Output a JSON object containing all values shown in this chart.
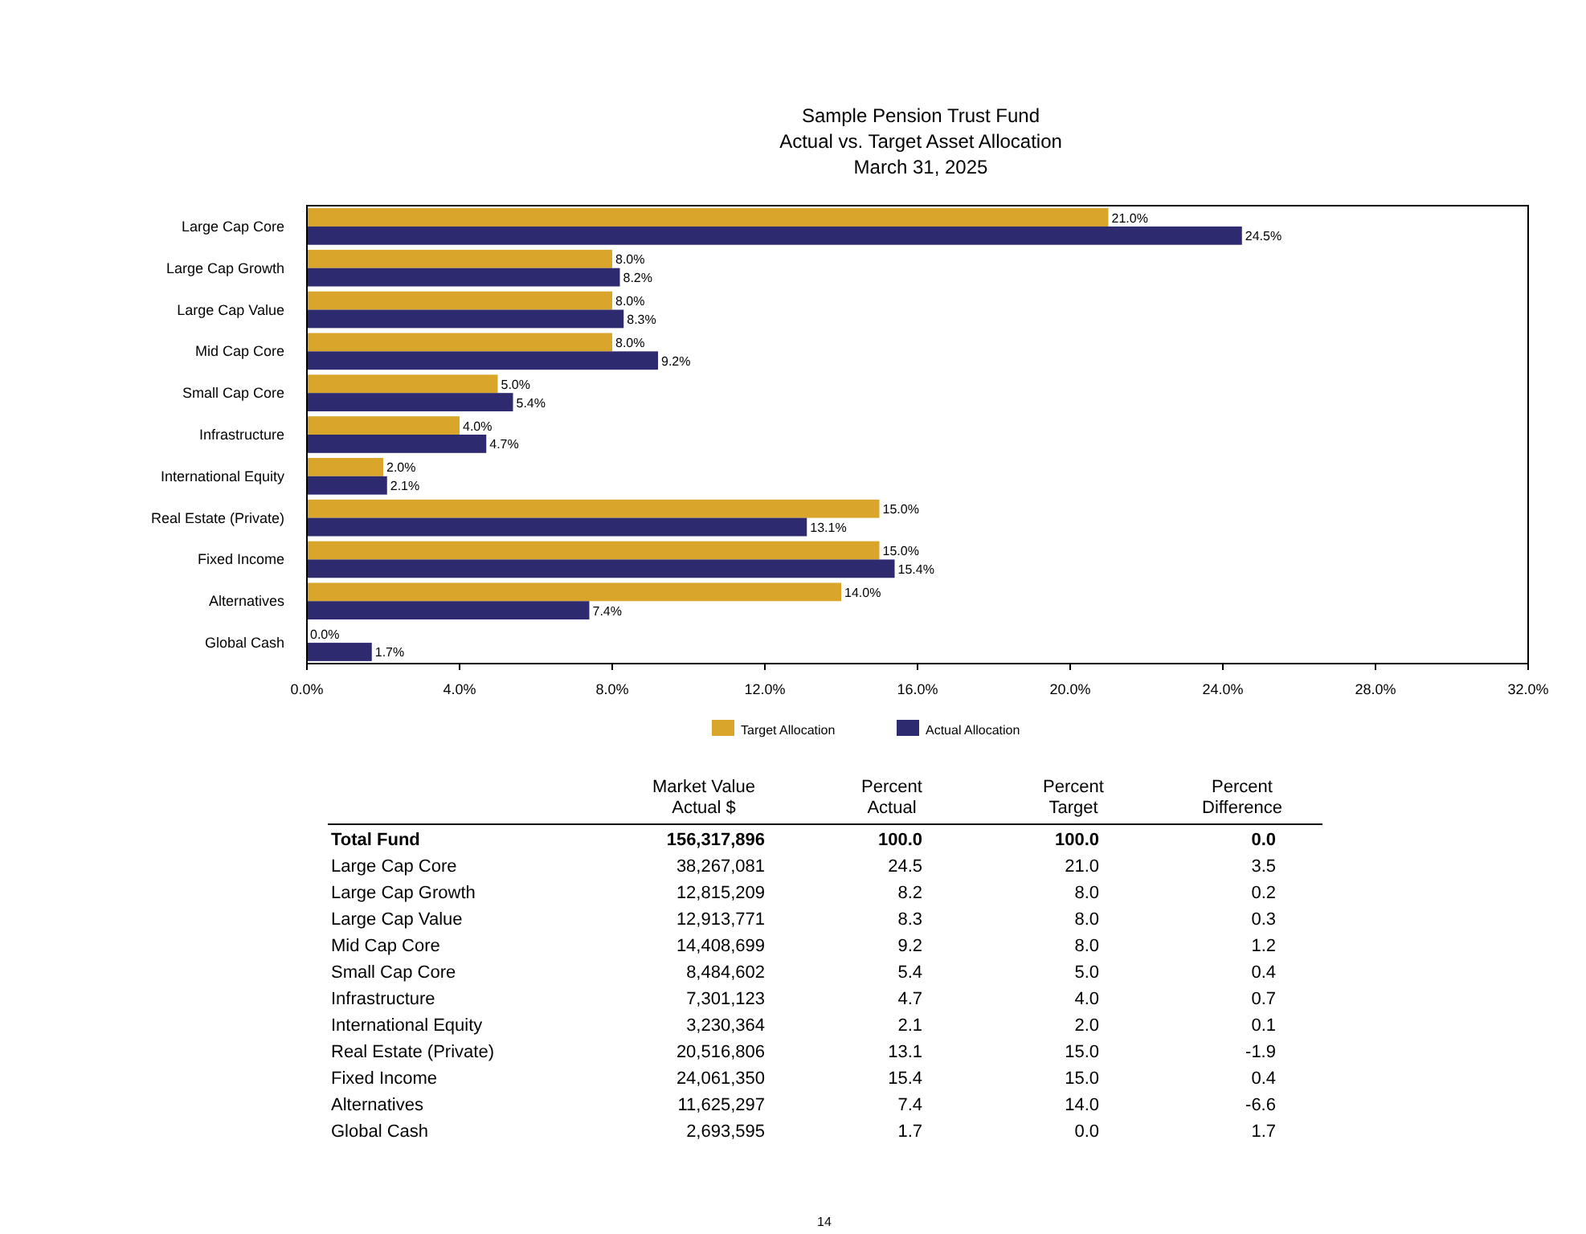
{
  "chart_data": [
    {
      "type": "bar",
      "orientation": "horizontal",
      "title": "Sample Pension Trust Fund\nActual vs. Target Asset Allocation",
      "subtitle": "March 31, 2025",
      "categories": [
        "Large Cap Core",
        "Large Cap Growth",
        "Large Cap Value",
        "Mid Cap Core",
        "Small Cap Core",
        "Infrastructure",
        "International Equity",
        "Real Estate (Private)",
        "Fixed Income",
        "Alternatives",
        "Global Cash"
      ],
      "series": [
        {
          "name": "Target Allocation",
          "color": "#d9a52b",
          "values": [
            21.0,
            8.0,
            8.0,
            8.0,
            5.0,
            4.0,
            2.0,
            15.0,
            15.0,
            14.0,
            0.0
          ],
          "value_labels": [
            "21.0%",
            "8.0%",
            "8.0%",
            "8.0%",
            "5.0%",
            "4.0%",
            "2.0%",
            "15.0%",
            "15.0%",
            "14.0%",
            "0.0%"
          ]
        },
        {
          "name": "Actual Allocation",
          "color": "#2e2a70",
          "values": [
            24.5,
            8.2,
            8.3,
            9.2,
            5.4,
            4.7,
            2.1,
            13.1,
            15.4,
            7.4,
            1.7
          ],
          "value_labels": [
            "24.5%",
            "8.2%",
            "8.3%",
            "9.2%",
            "5.4%",
            "4.7%",
            "2.1%",
            "13.1%",
            "15.4%",
            "7.4%",
            "1.7%"
          ]
        }
      ],
      "xlim": [
        0,
        32
      ],
      "xticks": [
        {
          "value": 0,
          "label": "0.0%"
        },
        {
          "value": 4,
          "label": "4.0%"
        },
        {
          "value": 8,
          "label": "8.0%"
        },
        {
          "value": 12,
          "label": "12.0%"
        },
        {
          "value": 16,
          "label": "16.0%"
        },
        {
          "value": 20,
          "label": "20.0%"
        },
        {
          "value": 24,
          "label": "24.0%"
        },
        {
          "value": 28,
          "label": "28.0%"
        },
        {
          "value": 32,
          "label": "32.0%"
        }
      ],
      "grid": false,
      "legend": "bottom"
    },
    {
      "type": "other",
      "annotations": [
        "Market Value\nActual $",
        "Percent\nActual",
        "Percent\nTarget",
        "Percent\nDifference",
        "Total Fund",
        "156,317,896",
        "100.0",
        "100.0",
        "0.0",
        "Large Cap Core",
        "38,267,081",
        "24.5",
        "21.0",
        "3.5",
        "Large Cap Growth",
        "12,815,209",
        "8.2",
        "8.0",
        "0.2",
        "Large Cap Value",
        "12,913,771",
        "8.3",
        "8.0",
        "0.3",
        "Mid Cap Core",
        "14,408,699",
        "9.2",
        "8.0",
        "1.2",
        "Small Cap Core",
        "8,484,602",
        "5.4",
        "5.0",
        "0.4",
        "Infrastructure",
        "7,301,123",
        "4.7",
        "4.0",
        "0.7",
        "International Equity",
        "3,230,364",
        "2.1",
        "2.0",
        "0.1",
        "Real Estate (Private)",
        "20,516,806",
        "13.1",
        "15.0",
        "-1.9",
        "Fixed Income",
        "24,061,350",
        "15.4",
        "15.0",
        "0.4",
        "Alternatives",
        "11,625,297",
        "7.4",
        "14.0",
        "-6.6",
        "Global Cash",
        "2,693,595",
        "1.7",
        "0.0",
        "1.7",
        "14"
      ]
    }
  ]
}
